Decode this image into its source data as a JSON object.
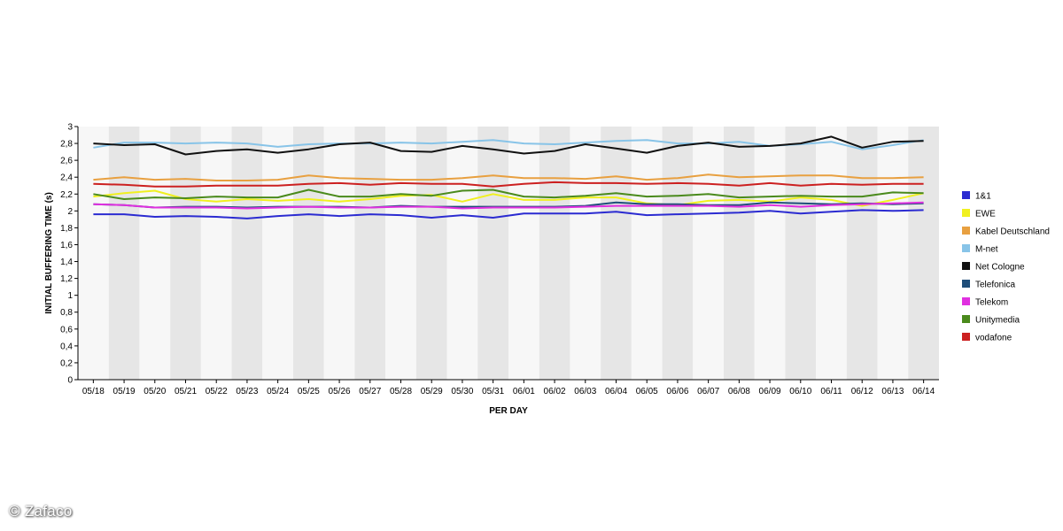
{
  "watermark": "© Zafaco",
  "chart_data": {
    "type": "line",
    "xlabel": "PER DAY",
    "ylabel": "INITIAL BUFFERING TIME (s)",
    "ylim": [
      0,
      3
    ],
    "yticks": [
      "0",
      "0,2",
      "0,4",
      "0,6",
      "0,8",
      "1",
      "1,2",
      "1,4",
      "1,6",
      "1,8",
      "2",
      "2,2",
      "2,4",
      "2,6",
      "2,8",
      "3"
    ],
    "categories": [
      "05/18",
      "05/19",
      "05/20",
      "05/21",
      "05/22",
      "05/23",
      "05/24",
      "05/25",
      "05/26",
      "05/27",
      "05/28",
      "05/29",
      "05/30",
      "05/31",
      "06/01",
      "06/02",
      "06/03",
      "06/04",
      "06/05",
      "06/06",
      "06/07",
      "06/08",
      "06/09",
      "06/10",
      "06/11",
      "06/12",
      "06/13",
      "06/14"
    ],
    "grid": "alternating vertical bands",
    "legend_position": "right",
    "series": [
      {
        "name": "1&1",
        "color": "#2b2bd1",
        "values": [
          1.96,
          1.96,
          1.93,
          1.94,
          1.93,
          1.91,
          1.94,
          1.96,
          1.94,
          1.96,
          1.95,
          1.92,
          1.95,
          1.92,
          1.97,
          1.97,
          1.97,
          1.99,
          1.95,
          1.96,
          1.97,
          1.98,
          2.0,
          1.97,
          1.99,
          2.01,
          2.0,
          2.01
        ]
      },
      {
        "name": "EWE",
        "color": "#f0f020",
        "values": [
          2.17,
          2.21,
          2.24,
          2.14,
          2.11,
          2.14,
          2.12,
          2.14,
          2.11,
          2.14,
          2.18,
          2.19,
          2.11,
          2.2,
          2.13,
          2.13,
          2.16,
          2.16,
          2.09,
          2.07,
          2.12,
          2.13,
          2.11,
          2.16,
          2.13,
          2.06,
          2.13,
          2.21
        ]
      },
      {
        "name": "Kabel Deutschland",
        "color": "#e8a040",
        "values": [
          2.37,
          2.4,
          2.37,
          2.38,
          2.36,
          2.36,
          2.37,
          2.42,
          2.39,
          2.38,
          2.37,
          2.37,
          2.39,
          2.42,
          2.39,
          2.39,
          2.38,
          2.41,
          2.37,
          2.39,
          2.43,
          2.4,
          2.41,
          2.42,
          2.42,
          2.39,
          2.39,
          2.4
        ]
      },
      {
        "name": "M-net",
        "color": "#88c4e8",
        "values": [
          2.75,
          2.81,
          2.81,
          2.8,
          2.81,
          2.8,
          2.76,
          2.79,
          2.8,
          2.8,
          2.81,
          2.8,
          2.82,
          2.84,
          2.8,
          2.79,
          2.81,
          2.83,
          2.84,
          2.8,
          2.8,
          2.82,
          2.77,
          2.79,
          2.82,
          2.73,
          2.78,
          2.84
        ]
      },
      {
        "name": "Net Cologne",
        "color": "#111111",
        "values": [
          2.8,
          2.78,
          2.79,
          2.67,
          2.71,
          2.73,
          2.69,
          2.73,
          2.79,
          2.81,
          2.71,
          2.7,
          2.77,
          2.73,
          2.68,
          2.71,
          2.79,
          2.74,
          2.69,
          2.77,
          2.81,
          2.76,
          2.77,
          2.8,
          2.88,
          2.75,
          2.82,
          2.83
        ]
      },
      {
        "name": "Telefonica",
        "color": "#1f4e79",
        "values": [
          2.08,
          2.07,
          2.04,
          2.05,
          2.05,
          2.04,
          2.05,
          2.05,
          2.05,
          2.04,
          2.06,
          2.05,
          2.05,
          2.05,
          2.05,
          2.05,
          2.06,
          2.1,
          2.08,
          2.08,
          2.07,
          2.07,
          2.1,
          2.09,
          2.08,
          2.09,
          2.08,
          2.09
        ]
      },
      {
        "name": "Telekom",
        "color": "#e030e0",
        "values": [
          2.08,
          2.07,
          2.04,
          2.04,
          2.04,
          2.03,
          2.04,
          2.05,
          2.04,
          2.04,
          2.05,
          2.05,
          2.03,
          2.04,
          2.04,
          2.04,
          2.05,
          2.06,
          2.06,
          2.06,
          2.06,
          2.05,
          2.07,
          2.05,
          2.07,
          2.08,
          2.09,
          2.1
        ]
      },
      {
        "name": "Unitymedia",
        "color": "#4a8a1c",
        "values": [
          2.2,
          2.14,
          2.16,
          2.15,
          2.17,
          2.16,
          2.16,
          2.25,
          2.17,
          2.17,
          2.2,
          2.18,
          2.24,
          2.25,
          2.17,
          2.16,
          2.18,
          2.21,
          2.17,
          2.18,
          2.2,
          2.16,
          2.17,
          2.18,
          2.17,
          2.17,
          2.22,
          2.21
        ]
      },
      {
        "name": "vodafone",
        "color": "#cc2020",
        "values": [
          2.32,
          2.31,
          2.29,
          2.29,
          2.3,
          2.3,
          2.3,
          2.32,
          2.33,
          2.31,
          2.33,
          2.32,
          2.32,
          2.29,
          2.32,
          2.34,
          2.33,
          2.33,
          2.32,
          2.33,
          2.32,
          2.3,
          2.33,
          2.3,
          2.32,
          2.31,
          2.32,
          2.32
        ]
      }
    ]
  }
}
